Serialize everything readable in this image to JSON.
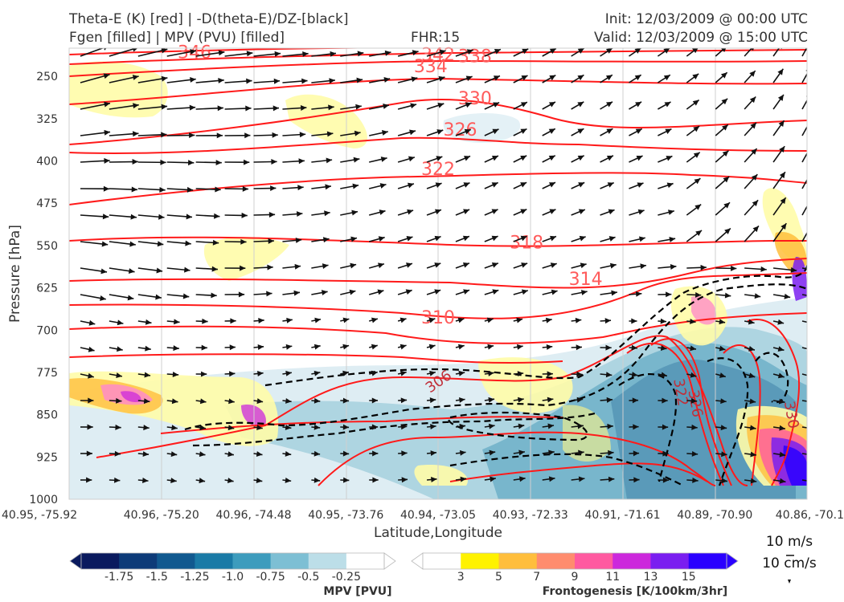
{
  "header": {
    "title_line1": "Theta-E (K) [red] | -D(theta-E)/DZ-[black]",
    "title_line2": "Fgen [filled] | MPV (PVU) [filled]",
    "fhr": "FHR:15",
    "init": "Init: 12/03/2009 @ 00:00 UTC",
    "valid": "Valid: 12/03/2009 @ 15:00 UTC"
  },
  "chart_data": {
    "type": "contour",
    "xlabel": "Latitude,Longitude",
    "ylabel": "Pressure [hPa]",
    "y_ticks": [
      "250",
      "325",
      "400",
      "475",
      "550",
      "625",
      "700",
      "775",
      "850",
      "925",
      "1000"
    ],
    "y_range": [
      200,
      1000
    ],
    "x_ticks": [
      "40.95, -75.92",
      "40.96, -75.20",
      "40.96, -74.48",
      "40.95, -73.76",
      "40.94, -73.05",
      "40.93, -72.33",
      "40.91, -71.61",
      "40.89, -70.90",
      "40.86, -70.1"
    ],
    "x_ticks_prefix": "40.95, ",
    "theta_e_labels": [
      {
        "value": "346",
        "x": 0.17,
        "y": 208
      },
      {
        "value": "342",
        "x": 0.5,
        "y": 212
      },
      {
        "value": "338",
        "x": 0.55,
        "y": 215
      },
      {
        "value": "334",
        "x": 0.49,
        "y": 233
      },
      {
        "value": "330",
        "x": 0.55,
        "y": 290
      },
      {
        "value": "326",
        "x": 0.53,
        "y": 345
      },
      {
        "value": "322",
        "x": 0.5,
        "y": 415
      },
      {
        "value": "318",
        "x": 0.62,
        "y": 545
      },
      {
        "value": "314",
        "x": 0.7,
        "y": 610
      },
      {
        "value": "310",
        "x": 0.5,
        "y": 678
      },
      {
        "value": "306",
        "x": 0.5,
        "y": 790
      },
      {
        "value": "322",
        "x": 0.83,
        "y": 810
      },
      {
        "value": "326",
        "x": 0.85,
        "y": 830
      },
      {
        "value": "330",
        "x": 0.98,
        "y": 850
      }
    ],
    "theta_e_levels": [
      346,
      342,
      338,
      334,
      330,
      326,
      322,
      318,
      314,
      310,
      306
    ],
    "mpv_colorbar": {
      "label": "MPV [PVU]",
      "ticks": [
        "-1.75",
        "-1.5",
        "-1.25",
        "-1.0",
        "-0.75",
        "-0.5",
        "-0.25"
      ],
      "colors": [
        "#0a1a5e",
        "#0d3b78",
        "#11598f",
        "#1a7aa6",
        "#3d9cbd",
        "#7dbfd4",
        "#bcdee8",
        "#ffffff"
      ]
    },
    "fgen_colorbar": {
      "label": "Frontogenesis [K/100km/3hr]",
      "ticks": [
        "3",
        "5",
        "7",
        "9",
        "11",
        "13",
        "15"
      ],
      "colors": [
        "#ffffff",
        "#fff200",
        "#ffbe3c",
        "#ff8c6e",
        "#ff5aa0",
        "#cc28dc",
        "#7a1ef0",
        "#2a00ff"
      ]
    },
    "vector_key": {
      "horizontal": "10 m/s",
      "vertical": "10 cm/s"
    },
    "grid": true
  }
}
